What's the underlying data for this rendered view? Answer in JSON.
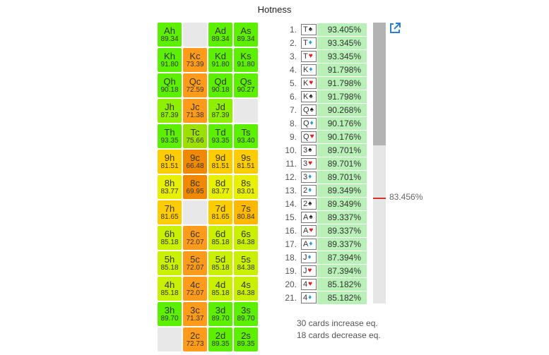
{
  "title": "Hotness",
  "colors": {
    "green": "#66ff00",
    "light_green": "#ccff33",
    "yellow": "#ffd400",
    "orange": "#ff9900",
    "empty": "#e8e8e8",
    "list_bg": "#b8f0b8",
    "heart": "#e02020",
    "diamond": "#2d9cdb",
    "spade": "#222222",
    "mean_marker": "#d62f2f",
    "link_icon": "#2f7fd1"
  },
  "grid": [
    [
      {
        "card": "Ah",
        "value": "89.34",
        "color": "#5cf000"
      },
      {
        "empty": true
      },
      {
        "card": "Ad",
        "value": "89.34",
        "color": "#5cf000"
      },
      {
        "card": "As",
        "value": "89.34",
        "color": "#5cf000"
      }
    ],
    [
      {
        "card": "Kh",
        "value": "91.80",
        "color": "#5cf000"
      },
      {
        "card": "Kc",
        "value": "73.39",
        "color": "#ff9b1a"
      },
      {
        "card": "Kd",
        "value": "91.80",
        "color": "#5cf000"
      },
      {
        "card": "Ks",
        "value": "91.80",
        "color": "#5cf000"
      }
    ],
    [
      {
        "card": "Qh",
        "value": "90.18",
        "color": "#5cf000"
      },
      {
        "card": "Qc",
        "value": "72.59",
        "color": "#ff9b1a"
      },
      {
        "card": "Qd",
        "value": "90.18",
        "color": "#5cf000"
      },
      {
        "card": "Qs",
        "value": "90.27",
        "color": "#5cf000"
      }
    ],
    [
      {
        "card": "Jh",
        "value": "87.39",
        "color": "#8ef000"
      },
      {
        "card": "Jc",
        "value": "71.38",
        "color": "#ff9b1a"
      },
      {
        "card": "Jd",
        "value": "87.39",
        "color": "#8ef000"
      },
      {
        "empty": true
      }
    ],
    [
      {
        "card": "Th",
        "value": "93.35",
        "color": "#5cf000"
      },
      {
        "card": "Tc",
        "value": "75.66",
        "color": "#9be000"
      },
      {
        "card": "Td",
        "value": "93.35",
        "color": "#5cf000"
      },
      {
        "card": "Ts",
        "value": "93.40",
        "color": "#5cf000"
      }
    ],
    [
      {
        "card": "9h",
        "value": "81.51",
        "color": "#ffcc00"
      },
      {
        "card": "9c",
        "value": "66.48",
        "color": "#f08800"
      },
      {
        "card": "9d",
        "value": "81.51",
        "color": "#ffcc00"
      },
      {
        "card": "9s",
        "value": "81.51",
        "color": "#ffcc00"
      }
    ],
    [
      {
        "card": "8h",
        "value": "83.77",
        "color": "#e6f000"
      },
      {
        "card": "8c",
        "value": "69.95",
        "color": "#f08800"
      },
      {
        "card": "8d",
        "value": "83.77",
        "color": "#e6f000"
      },
      {
        "card": "8s",
        "value": "83.01",
        "color": "#e6f000"
      }
    ],
    [
      {
        "card": "7h",
        "value": "81.65",
        "color": "#ffcc00"
      },
      {
        "empty": true
      },
      {
        "card": "7d",
        "value": "81.65",
        "color": "#ffcc00"
      },
      {
        "card": "7s",
        "value": "80.84",
        "color": "#ffb800"
      }
    ],
    [
      {
        "card": "6h",
        "value": "85.18",
        "color": "#c8f000"
      },
      {
        "card": "6c",
        "value": "72.07",
        "color": "#ff9b1a"
      },
      {
        "card": "6d",
        "value": "85.18",
        "color": "#c8f000"
      },
      {
        "card": "6s",
        "value": "84.38",
        "color": "#c8f000"
      }
    ],
    [
      {
        "card": "5h",
        "value": "85.18",
        "color": "#c8f000"
      },
      {
        "card": "5c",
        "value": "72.07",
        "color": "#ff9b1a"
      },
      {
        "card": "5d",
        "value": "85.18",
        "color": "#c8f000"
      },
      {
        "card": "5s",
        "value": "84.38",
        "color": "#c8f000"
      }
    ],
    [
      {
        "card": "4h",
        "value": "85.18",
        "color": "#c8f000"
      },
      {
        "card": "4c",
        "value": "72.07",
        "color": "#ff9b1a"
      },
      {
        "card": "4d",
        "value": "85.18",
        "color": "#c8f000"
      },
      {
        "card": "4s",
        "value": "84.38",
        "color": "#c8f000"
      }
    ],
    [
      {
        "card": "3h",
        "value": "89.70",
        "color": "#5cf000"
      },
      {
        "card": "3c",
        "value": "71.37",
        "color": "#ff9b1a"
      },
      {
        "card": "3d",
        "value": "89.70",
        "color": "#5cf000"
      },
      {
        "card": "3s",
        "value": "89.70",
        "color": "#5cf000"
      }
    ],
    [
      {
        "empty": true
      },
      {
        "card": "2c",
        "value": "72.73",
        "color": "#ff9b1a"
      },
      {
        "card": "2d",
        "value": "89.35",
        "color": "#5cf000"
      },
      {
        "card": "2s",
        "value": "89.35",
        "color": "#5cf000"
      }
    ]
  ],
  "ranking": [
    {
      "rank": "1.",
      "rank_card": "T",
      "suit": "spade",
      "value": "93.405%"
    },
    {
      "rank": "2.",
      "rank_card": "T",
      "suit": "diamond",
      "value": "93.345%"
    },
    {
      "rank": "3.",
      "rank_card": "T",
      "suit": "heart",
      "value": "93.345%"
    },
    {
      "rank": "4.",
      "rank_card": "K",
      "suit": "diamond",
      "value": "91.798%"
    },
    {
      "rank": "5.",
      "rank_card": "K",
      "suit": "heart",
      "value": "91.798%"
    },
    {
      "rank": "6.",
      "rank_card": "K",
      "suit": "spade",
      "value": "91.798%"
    },
    {
      "rank": "7.",
      "rank_card": "Q",
      "suit": "spade",
      "value": "90.268%"
    },
    {
      "rank": "8.",
      "rank_card": "Q",
      "suit": "diamond",
      "value": "90.176%"
    },
    {
      "rank": "9.",
      "rank_card": "Q",
      "suit": "heart",
      "value": "90.176%"
    },
    {
      "rank": "10.",
      "rank_card": "3",
      "suit": "spade",
      "value": "89.701%"
    },
    {
      "rank": "11.",
      "rank_card": "3",
      "suit": "heart",
      "value": "89.701%"
    },
    {
      "rank": "12.",
      "rank_card": "3",
      "suit": "diamond",
      "value": "89.701%"
    },
    {
      "rank": "13.",
      "rank_card": "2",
      "suit": "diamond",
      "value": "89.349%"
    },
    {
      "rank": "14.",
      "rank_card": "2",
      "suit": "spade",
      "value": "89.349%"
    },
    {
      "rank": "15.",
      "rank_card": "A",
      "suit": "spade",
      "value": "89.337%"
    },
    {
      "rank": "16.",
      "rank_card": "A",
      "suit": "heart",
      "value": "89.337%"
    },
    {
      "rank": "17.",
      "rank_card": "A",
      "suit": "diamond",
      "value": "89.337%"
    },
    {
      "rank": "18.",
      "rank_card": "J",
      "suit": "diamond",
      "value": "87.394%"
    },
    {
      "rank": "19.",
      "rank_card": "J",
      "suit": "heart",
      "value": "87.394%"
    },
    {
      "rank": "20.",
      "rank_card": "4",
      "suit": "heart",
      "value": "85.182%"
    },
    {
      "rank": "21.",
      "rank_card": "4",
      "suit": "diamond",
      "value": "85.182%"
    }
  ],
  "mean_label": "83.456%",
  "summary": {
    "increase": "30 cards increase eq.",
    "decrease": "18 cards decrease eq."
  },
  "icons": {
    "external_link": "external-link-icon"
  }
}
